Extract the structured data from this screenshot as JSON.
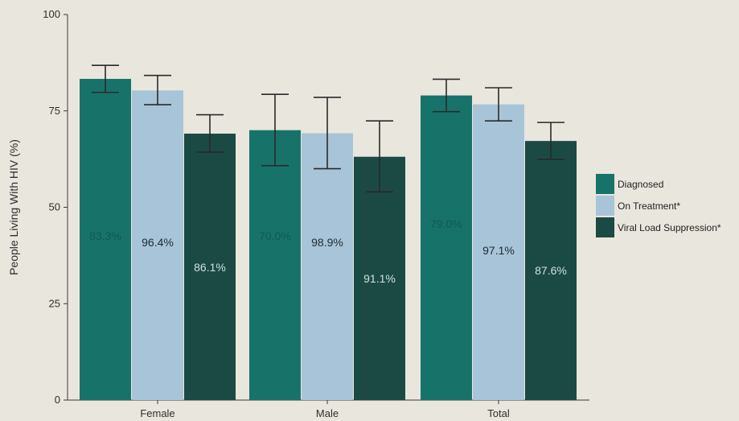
{
  "chart_data": {
    "type": "bar",
    "title": "",
    "xlabel": "",
    "ylabel": "People Living With HIV (%)",
    "ylim": [
      0,
      100
    ],
    "yticks": [
      0,
      25,
      50,
      75,
      100
    ],
    "grid": false,
    "legend_position": "right",
    "categories": [
      "Female",
      "Male",
      "Total"
    ],
    "series": [
      {
        "name": "Diagnosed",
        "color": "#17736a",
        "values": [
          83.3,
          70.0,
          79.0
        ],
        "error_low": [
          79.8,
          60.8,
          74.8
        ],
        "error_high": [
          86.8,
          79.3,
          83.2
        ],
        "labels": [
          "83.3%",
          "70.0%",
          "79.0%"
        ],
        "label_color": "#0f5a52"
      },
      {
        "name": "On Treatment*",
        "color": "#a8c4d8",
        "values": [
          80.3,
          69.2,
          76.7
        ],
        "error_low": [
          76.6,
          60.0,
          72.4
        ],
        "error_high": [
          84.2,
          78.5,
          81.0
        ],
        "labels": [
          "96.4%",
          "98.9%",
          "97.1%"
        ],
        "label_color": "#1e2a33"
      },
      {
        "name": "Viral Load Suppression*",
        "color": "#1b4a45",
        "values": [
          69.1,
          63.1,
          67.2
        ],
        "error_low": [
          64.3,
          54.0,
          62.4
        ],
        "error_high": [
          74.0,
          72.4,
          72.0
        ],
        "labels": [
          "86.1%",
          "91.1%",
          "87.6%"
        ],
        "label_color": "#cfe0dc"
      }
    ]
  }
}
